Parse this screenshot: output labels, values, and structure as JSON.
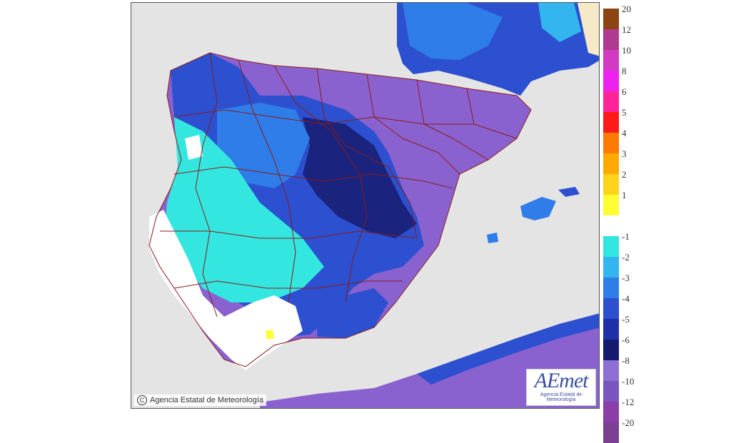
{
  "legend": {
    "items": [
      {
        "label": "20",
        "color": "#8b4513"
      },
      {
        "label": "12",
        "color": "#b03a8f"
      },
      {
        "label": "10",
        "color": "#d33ac4"
      },
      {
        "label": "8",
        "color": "#ee22ee"
      },
      {
        "label": "6",
        "color": "#ff2299"
      },
      {
        "label": "5",
        "color": "#ff1a1a"
      },
      {
        "label": "4",
        "color": "#ff7a00"
      },
      {
        "label": "3",
        "color": "#ffaa00"
      },
      {
        "label": "2",
        "color": "#ffd41a"
      },
      {
        "label": "1",
        "color": "#ffff33"
      },
      {
        "label": "",
        "color": "#ffffff"
      },
      {
        "label": "-1",
        "color": "#33e6e0"
      },
      {
        "label": "-2",
        "color": "#33b5f0"
      },
      {
        "label": "-3",
        "color": "#2f7de8"
      },
      {
        "label": "-4",
        "color": "#2c50d0"
      },
      {
        "label": "-5",
        "color": "#1e2fa8"
      },
      {
        "label": "-6",
        "color": "#151a6e"
      },
      {
        "label": "-8",
        "color": "#8d6fd6"
      },
      {
        "label": "-10",
        "color": "#7a55c0"
      },
      {
        "label": "-12",
        "color": "#8a3fa8"
      },
      {
        "label": "-20",
        "color": "#7a3f91"
      }
    ]
  },
  "copyright": "Agencia Estatal de Meteorología",
  "copyright_symbol": "C",
  "logo": {
    "name": "AEmet",
    "subtitle": "Agencia Estatal de Meteorología"
  },
  "colors": {
    "sea": "#e4e4e4",
    "border": "#8b1a1a",
    "land_purple": "#8a62cf",
    "land_blue": "#2c50d0",
    "land_dark": "#1a237e",
    "land_cyan": "#33e6e0",
    "land_mid": "#2f7de8",
    "land_white": "#ffffff"
  }
}
